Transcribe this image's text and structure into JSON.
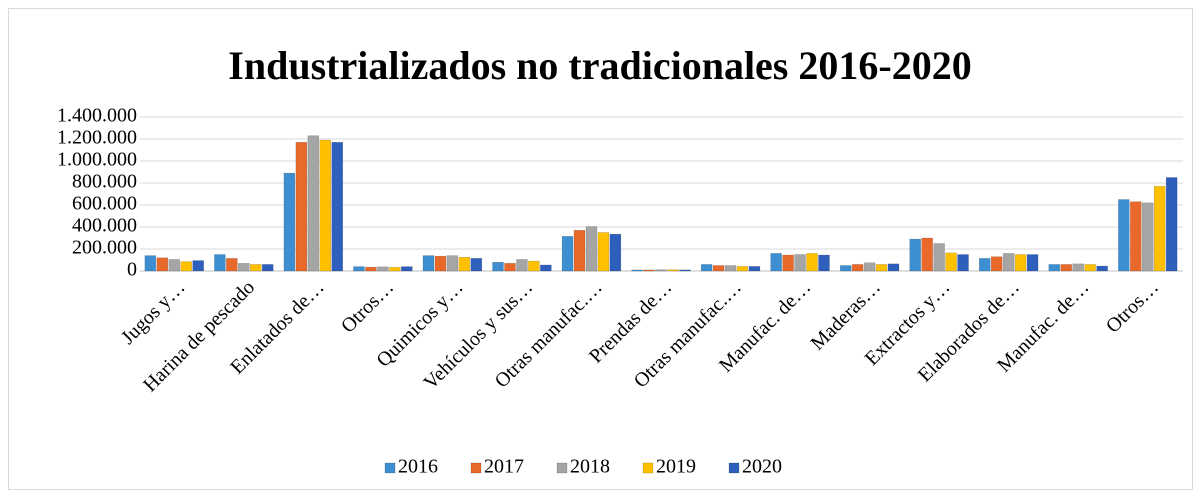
{
  "chart_data": {
    "type": "bar",
    "title": "Industrializados no tradicionales 2016-2020",
    "categories": [
      "Jugos y…",
      "Harina de pescado",
      "Enlatados de…",
      "Otros…",
      "Quimicos y…",
      "Vehículos y sus…",
      "Otras manufac.…",
      "Prendas de…",
      "Otras manufac.…",
      "Manufac. de…",
      "Maderas…",
      "Extractos y…",
      "Elaborados de…",
      "Manufac. de…",
      "Otros…"
    ],
    "series": [
      {
        "name": "2016",
        "color": "#3d8fd1",
        "values": [
          140000,
          150000,
          890000,
          40000,
          140000,
          80000,
          315000,
          10000,
          60000,
          160000,
          50000,
          290000,
          115000,
          60000,
          650000
        ]
      },
      {
        "name": "2017",
        "color": "#e8692a",
        "values": [
          120000,
          115000,
          1170000,
          35000,
          135000,
          70000,
          370000,
          10000,
          50000,
          145000,
          60000,
          300000,
          130000,
          60000,
          630000
        ]
      },
      {
        "name": "2018",
        "color": "#a5a5a5",
        "values": [
          105000,
          70000,
          1230000,
          38000,
          140000,
          105000,
          405000,
          12000,
          50000,
          150000,
          75000,
          250000,
          160000,
          65000,
          620000
        ]
      },
      {
        "name": "2019",
        "color": "#ffc000",
        "values": [
          85000,
          60000,
          1190000,
          33000,
          125000,
          90000,
          350000,
          12000,
          42000,
          160000,
          60000,
          165000,
          150000,
          60000,
          770000
        ]
      },
      {
        "name": "2020",
        "color": "#2e5fbd",
        "values": [
          95000,
          60000,
          1170000,
          40000,
          115000,
          55000,
          335000,
          10000,
          42000,
          145000,
          65000,
          150000,
          150000,
          45000,
          850000
        ]
      }
    ],
    "ylim": [
      0,
      1400000
    ],
    "yticks": [
      0,
      {
        "value": 200000,
        "label": "200.000"
      },
      {
        "value": 400000,
        "label": "400.000"
      },
      {
        "value": 600000,
        "label": "600.000"
      },
      {
        "value": 800000,
        "label": "800.000"
      },
      {
        "value": 1000000,
        "label": "1.000.000"
      },
      {
        "value": 1200000,
        "label": "1.200.000"
      },
      {
        "value": 1400000,
        "label": "1.400.000"
      }
    ],
    "grid": true,
    "legend": "bottom"
  }
}
